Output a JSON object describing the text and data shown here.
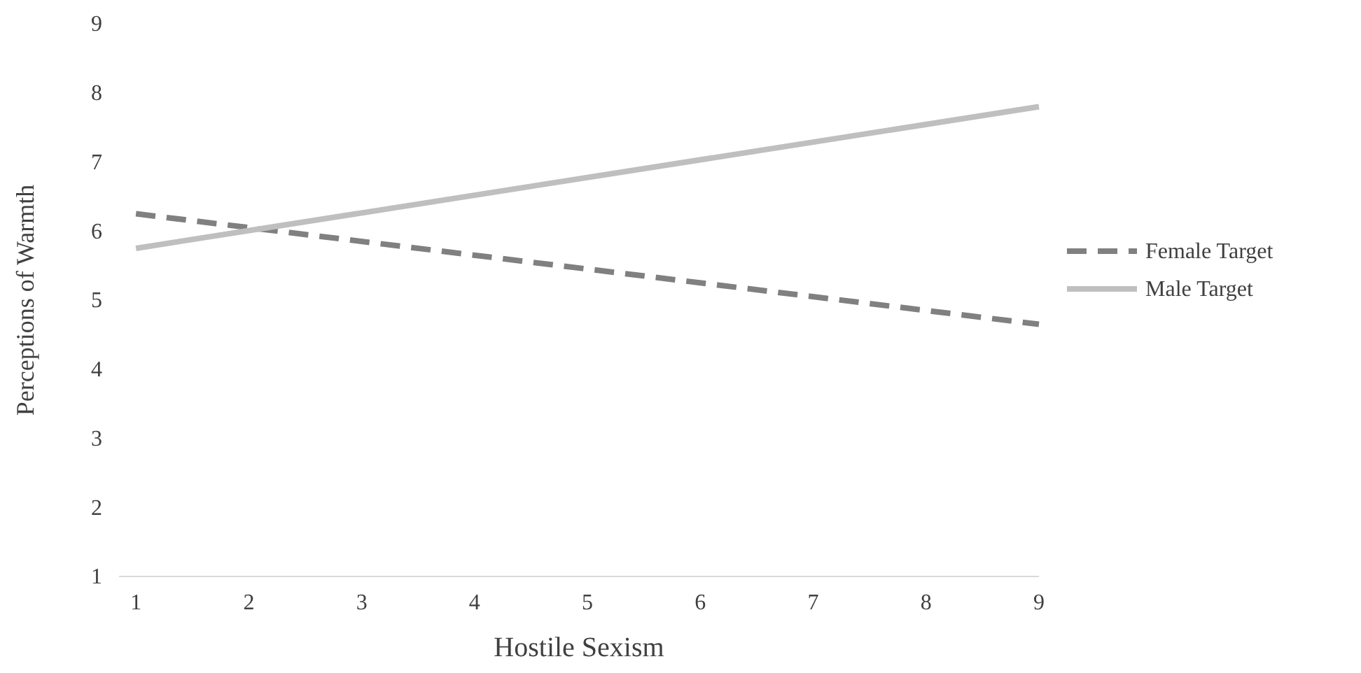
{
  "chart_data": {
    "type": "line",
    "xlabel": "Hostile Sexism",
    "ylabel": "Perceptions of Warmth",
    "x": [
      1,
      9
    ],
    "xlim": [
      0.85,
      9
    ],
    "xticks": [
      1,
      2,
      3,
      4,
      5,
      6,
      7,
      8,
      9
    ],
    "ylim": [
      1,
      9
    ],
    "yticks": [
      1,
      2,
      3,
      4,
      5,
      6,
      7,
      8,
      9
    ],
    "series": [
      {
        "name": "Female Target",
        "color": "#808080",
        "line_style": "dashed",
        "values": [
          6.25,
          4.65
        ]
      },
      {
        "name": "Male Target",
        "color": "#bfbfbf",
        "line_style": "solid",
        "values": [
          5.75,
          7.8
        ]
      }
    ],
    "legend": "right",
    "grid": false,
    "marker": "none"
  }
}
